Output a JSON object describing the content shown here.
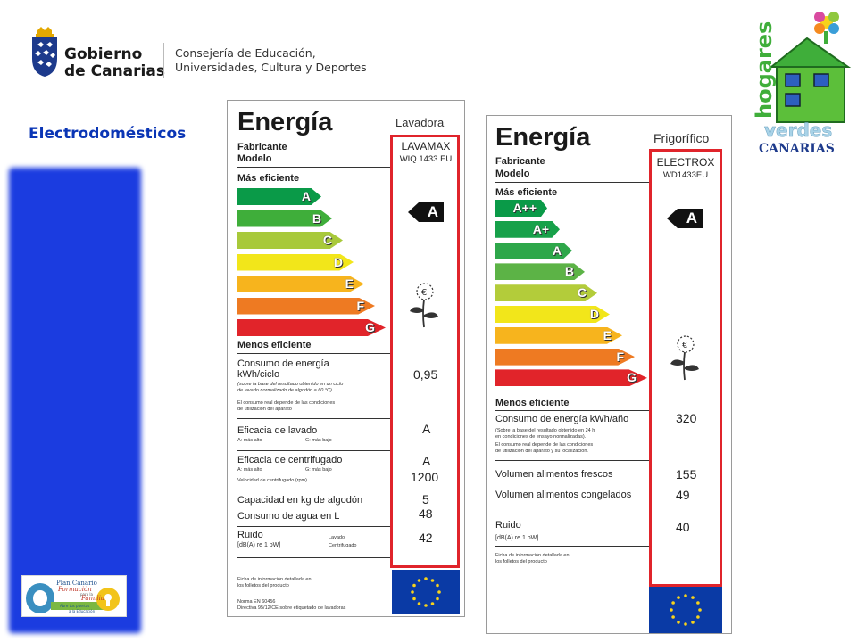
{
  "header": {
    "gov_name_line1": "Gobierno",
    "gov_name_line2": "de Canarias",
    "dept_line1": "Consejería de Educación,",
    "dept_line2": "Universidades, Cultura y Deportes"
  },
  "section_title": "Electrodomésticos",
  "hv_logo": {
    "word1": "hogares",
    "word2": "verdes",
    "word3": "CANARIAS"
  },
  "plan_logo": {
    "line1": "Plan Canario",
    "line2": "Formación",
    "line3": "para la",
    "line4": "Familia",
    "line5": "Abre tus puertas",
    "line6": "a la Educación"
  },
  "washer": {
    "title": "Energía",
    "appliance": "Lavadora",
    "fabricante_label": "Fabricante",
    "modelo_label": "Modelo",
    "fabricante": "LAVAMAX",
    "modelo": "WIQ 1433 EU",
    "mas_eficiente": "Más eficiente",
    "menos_eficiente": "Menos eficiente",
    "classes": [
      "A",
      "B",
      "C",
      "D",
      "E",
      "F",
      "G"
    ],
    "rating": "A",
    "consumo_label1": "Consumo de energía",
    "consumo_label2": "kWh/ciclo",
    "consumo_note1": "(sobre la base del resultado obtenido en un ciclo",
    "consumo_note2": "de lavado normalizado de algodón a 60 °C)",
    "consumo_note3": "El consumo real depende de las condiciones",
    "consumo_note4": "de utilización del aparato",
    "consumo_value": "0,95",
    "lavado_label": "Eficacia de lavado",
    "lavado_scale_a": "A: más alto",
    "lavado_scale_g": "G: más bajo",
    "lavado_value": "A",
    "centrifugado_label": "Eficacia de centrifugado",
    "centrifugado_scale_a": "A: más alto",
    "centrifugado_scale_g": "G: más bajo",
    "centrifugado_value": "A",
    "velocidad_label": "Velocidad de centrifugado (rpm)",
    "velocidad_value": "1200",
    "capacidad_label": "Capacidad en kg de algodón",
    "capacidad_value": "5",
    "agua_label": "Consumo de agua en L",
    "agua_value": "48",
    "ruido_label": "Ruido",
    "ruido_unit": "[dB(A) re 1 pW]",
    "ruido_lavado": "Lavado",
    "ruido_centrifugado": "Centrifugado",
    "ruido_value": "42",
    "ficha1": "Ficha de información detallada en",
    "ficha2": "los folletos del producto",
    "norma1": "Norma EN 60456",
    "norma2": "Directiva 95/12/CE sobre etiquetado de lavadoras"
  },
  "fridge": {
    "title": "Energía",
    "appliance": "Frigorífico",
    "fabricante_label": "Fabricante",
    "modelo_label": "Modelo",
    "fabricante": "ELECTROX",
    "modelo": "WD1433EU",
    "mas_eficiente": "Más eficiente",
    "menos_eficiente": "Menos eficiente",
    "classes": [
      "A++",
      "A+",
      "A",
      "B",
      "C",
      "D",
      "E",
      "F",
      "G"
    ],
    "rating": "A",
    "consumo_label": "Consumo de energía kWh/año",
    "consumo_note1": "(Sobre la base del resultado obtenido en 24 h",
    "consumo_note2": "en condiciones de ensayo normalizadas).",
    "consumo_note3": "El consumo real depende de las condiciones",
    "consumo_note4": "de utilización del aparato y su localización.",
    "consumo_value": "320",
    "frescos_label": "Volumen alimentos frescos",
    "frescos_value": "155",
    "congelados_label": "Volumen alimentos congelados",
    "congelados_value": "49",
    "ruido_label": "Ruido",
    "ruido_unit": "[dB(A) re 1 pW]",
    "ruido_value": "40",
    "ficha1": "Ficha de información detallada en",
    "ficha2": "los folletos del producto"
  },
  "colors": {
    "bar_colors": [
      "#0a9a48",
      "#3fae3a",
      "#a8c93a",
      "#f2e61a",
      "#f7b41d",
      "#ee7a22",
      "#e1242a"
    ],
    "fridge_colors": [
      "#0a9a48",
      "#17a14a",
      "#2ea74a",
      "#5cb346",
      "#b3cc3a",
      "#f2e61a",
      "#f7b41d",
      "#ee7a22",
      "#e1242a"
    ],
    "frame_red": "#e0242b",
    "eu_blue": "#0a3aa5",
    "title_blue": "#0a35b5"
  }
}
